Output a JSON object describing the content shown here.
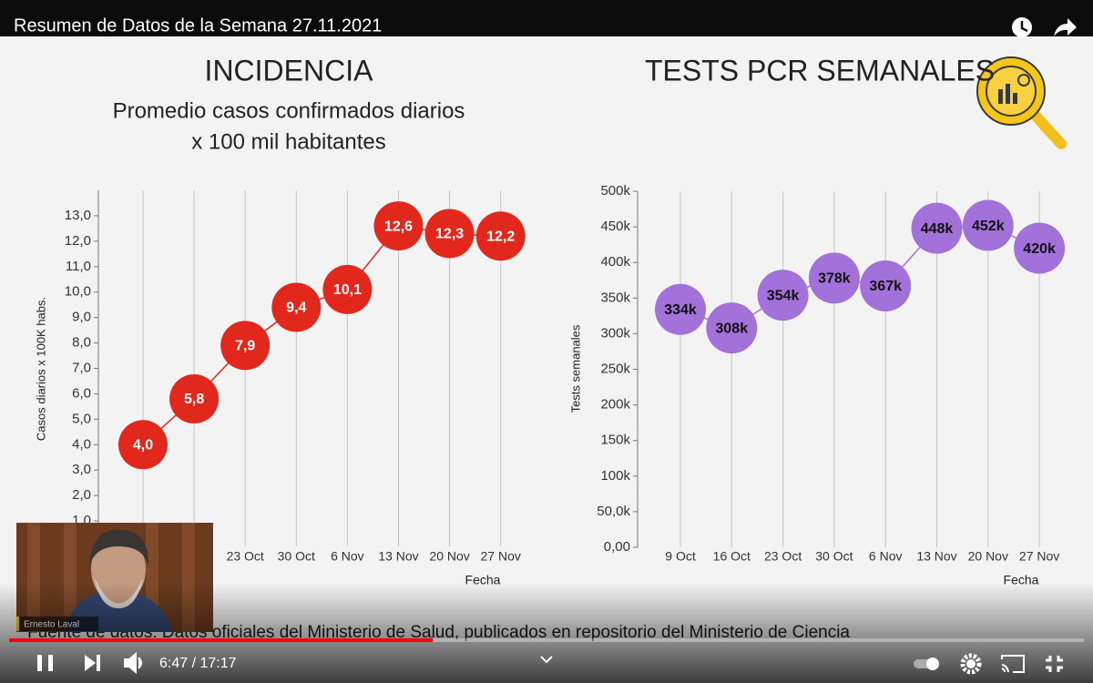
{
  "video": {
    "title": "Resumen de Datos de la Semana 27.11.2021",
    "time": "6:47 / 17:17",
    "presenter": "Ernesto Laval"
  },
  "slide": {
    "source": "Fuente de datos: Datos oficiales del Ministerio de Salud, publicados en repositorio del Ministerio de Ciencia"
  },
  "chart_data": [
    {
      "type": "line",
      "title": "INCIDENCIA",
      "subtitle": [
        "Promedio casos confirmados diarios",
        "x 100 mil habitantes"
      ],
      "x_label": "Fecha",
      "y_label": "Casos diarios x 100K habs.",
      "categories": [
        null,
        null,
        "23 Oct",
        "30 Oct",
        "6 Nov",
        "13 Nov",
        "20 Nov",
        "27 Nov"
      ],
      "values": [
        4.0,
        5.8,
        7.9,
        9.4,
        10.1,
        12.6,
        12.3,
        12.2
      ],
      "value_labels": [
        "4,0",
        "5,8",
        "7,9",
        "9,4",
        "10,1",
        "12,6",
        "12,3",
        "12,2"
      ],
      "color": "#e2281c",
      "ylim": [
        0,
        14
      ],
      "yticks": [
        {
          "value": 1,
          "label": "1,0"
        },
        {
          "value": 2,
          "label": "2,0"
        },
        {
          "value": 3,
          "label": "3,0"
        },
        {
          "value": 4,
          "label": "4,0"
        },
        {
          "value": 5,
          "label": "5,0"
        },
        {
          "value": 6,
          "label": "6,0"
        },
        {
          "value": 7,
          "label": "7,0"
        },
        {
          "value": 8,
          "label": "8,0"
        },
        {
          "value": 9,
          "label": "9,0"
        },
        {
          "value": 10,
          "label": "10,0"
        },
        {
          "value": 11,
          "label": "11,0"
        },
        {
          "value": 12,
          "label": "12,0"
        },
        {
          "value": 13,
          "label": "13,0"
        }
      ],
      "grid": true
    },
    {
      "type": "line",
      "title": "TESTS PCR SEMANALES",
      "x_label": "Fecha",
      "y_label": "Tests semanales",
      "categories": [
        "9 Oct",
        "16 Oct",
        "23 Oct",
        "30 Oct",
        "6 Nov",
        "13 Nov",
        "20 Nov",
        "27 Nov"
      ],
      "values": [
        334000,
        308000,
        354000,
        378000,
        367000,
        448000,
        452000,
        420000
      ],
      "value_labels": [
        "334k",
        "308k",
        "354k",
        "378k",
        "367k",
        "448k",
        "452k",
        "420k"
      ],
      "color": "#a371da",
      "ylim": [
        0,
        500000
      ],
      "yticks": [
        {
          "value": 0,
          "label": "0,00"
        },
        {
          "value": 50000,
          "label": "50,0k"
        },
        {
          "value": 100000,
          "label": "100k"
        },
        {
          "value": 150000,
          "label": "150k"
        },
        {
          "value": 200000,
          "label": "200k"
        },
        {
          "value": 250000,
          "label": "250k"
        },
        {
          "value": 300000,
          "label": "300k"
        },
        {
          "value": 350000,
          "label": "350k"
        },
        {
          "value": 400000,
          "label": "400k"
        },
        {
          "value": 450000,
          "label": "450k"
        },
        {
          "value": 500000,
          "label": "500k"
        }
      ],
      "grid": true
    }
  ]
}
